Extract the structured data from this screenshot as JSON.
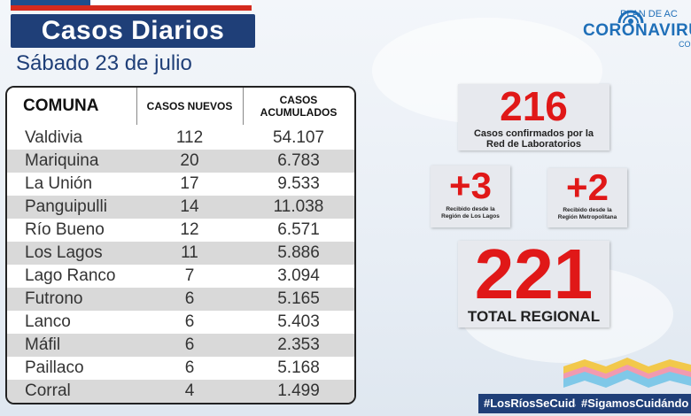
{
  "header": {
    "title": "Casos Diarios",
    "date": "Sábado 23 de julio"
  },
  "logo": {
    "plan_text": "PLAN DE AC",
    "main_text": "CORONAVIRU",
    "sub_text": "CO"
  },
  "table": {
    "headers": {
      "comuna": "COMUNA",
      "casos_nuevos": "CASOS NUEVOS",
      "casos_acumulados_1": "CASOS",
      "casos_acumulados_2": "ACUMULADOS"
    },
    "rows": [
      {
        "comuna": "Valdivia",
        "nuevos": "112",
        "acumulados": "54.107"
      },
      {
        "comuna": "Mariquina",
        "nuevos": "20",
        "acumulados": "6.783"
      },
      {
        "comuna": "La Unión",
        "nuevos": "17",
        "acumulados": "9.533"
      },
      {
        "comuna": "Panguipulli",
        "nuevos": "14",
        "acumulados": "11.038"
      },
      {
        "comuna": "Río Bueno",
        "nuevos": "12",
        "acumulados": "6.571"
      },
      {
        "comuna": "Los Lagos",
        "nuevos": "11",
        "acumulados": "5.886"
      },
      {
        "comuna": "Lago Ranco",
        "nuevos": "7",
        "acumulados": "3.094"
      },
      {
        "comuna": "Futrono",
        "nuevos": "6",
        "acumulados": "5.165"
      },
      {
        "comuna": "Lanco",
        "nuevos": "6",
        "acumulados": "5.403"
      },
      {
        "comuna": "Máfil",
        "nuevos": "6",
        "acumulados": "2.353"
      },
      {
        "comuna": "Paillaco",
        "nuevos": "6",
        "acumulados": "5.168"
      },
      {
        "comuna": "Corral",
        "nuevos": "4",
        "acumulados": "1.499"
      }
    ]
  },
  "summary": {
    "lab": {
      "value": "216",
      "label_1": "Casos confirmados  por la",
      "label_2": "Red de Laboratorios"
    },
    "los_lagos": {
      "value": "+3",
      "label_1": "Recibido desde la",
      "label_2": "Región de Los Lagos"
    },
    "metropolitana": {
      "value": "+2",
      "label_1": "Recibido desde la",
      "label_2": "Región Metropolitana"
    },
    "total": {
      "value": "221",
      "label": "TOTAL REGIONAL"
    }
  },
  "hashtags": {
    "left": "#LosRíosSeCuida",
    "right": "#SigamosCuidándo"
  },
  "colors": {
    "navy": "#1f3f78",
    "red": "#e01818",
    "flag_red": "#d52b1e",
    "logo_blue": "#1f6fb8",
    "row_gray": "#d9d9d9"
  }
}
